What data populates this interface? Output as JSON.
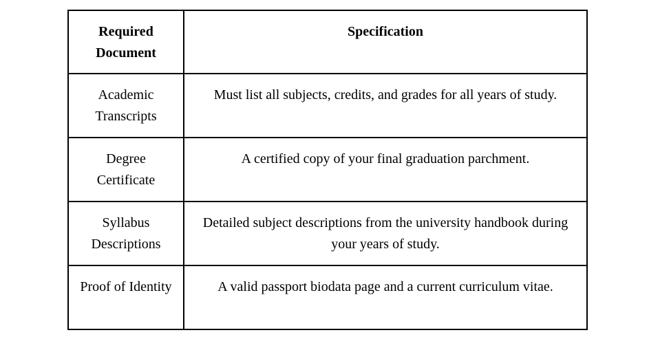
{
  "table": {
    "headers": [
      "Required Document",
      "Specification"
    ],
    "rows": [
      {
        "document": "Academic Transcripts",
        "specification": "Must list all subjects, credits, and grades for all years of study."
      },
      {
        "document": "Degree Certificate",
        "specification": "A certified copy of your final graduation parchment."
      },
      {
        "document": "Syllabus Descriptions",
        "specification": "Detailed subject descriptions from the university handbook during your years of study."
      },
      {
        "document": "Proof of Identity",
        "specification": "A valid passport biodata page and a current curriculum vitae."
      }
    ],
    "colors": {
      "border": "#000000",
      "text": "#000000",
      "background": "#ffffff"
    }
  }
}
